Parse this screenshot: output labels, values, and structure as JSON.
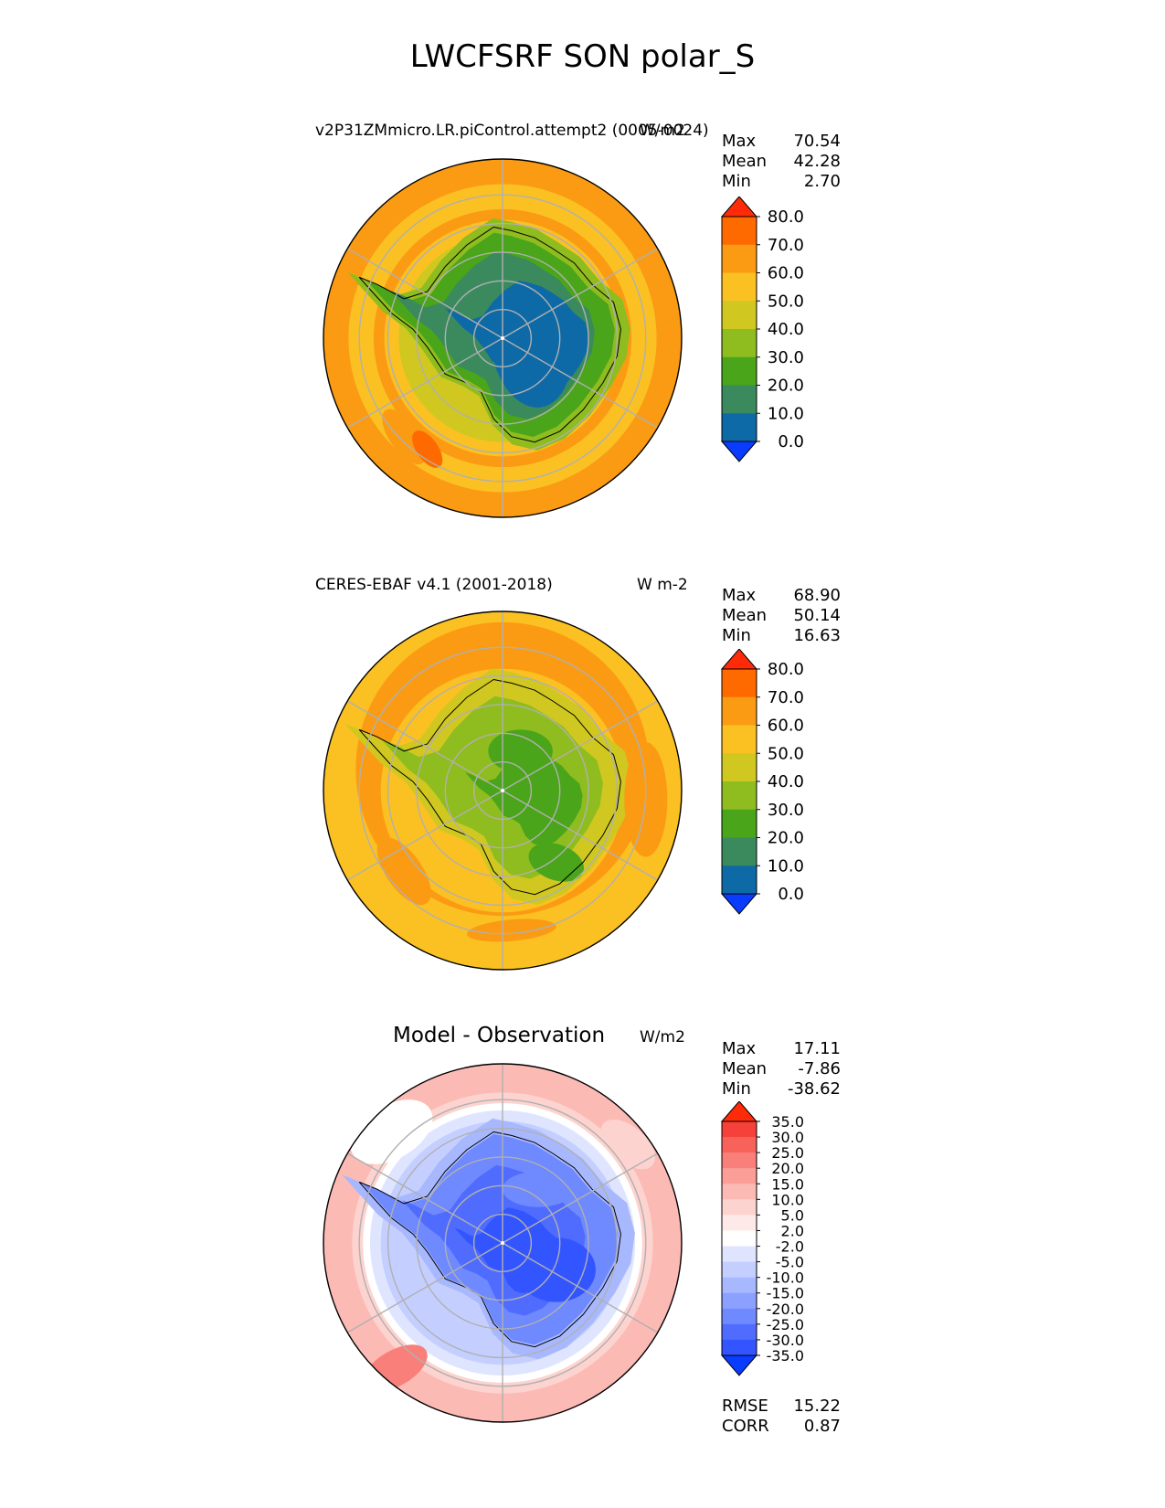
{
  "title": "LWCFSRF SON polar_S",
  "panels": [
    {
      "left_title": "v2P31ZMmicro.LR.piControl.attempt2 (0005-0024)",
      "right_title": "W/m2",
      "stats": [
        [
          "Max",
          "70.54"
        ],
        [
          "Mean",
          "42.28"
        ],
        [
          "Min",
          "2.70"
        ]
      ]
    },
    {
      "left_title": "CERES-EBAF v4.1 (2001-2018)",
      "right_title": "W m-2",
      "stats": [
        [
          "Max",
          "68.90"
        ],
        [
          "Mean",
          "50.14"
        ],
        [
          "Min",
          "16.63"
        ]
      ]
    },
    {
      "center_title": "Model - Observation",
      "right_title": "W/m2",
      "stats": [
        [
          "Max",
          "17.11"
        ],
        [
          "Mean",
          "-7.86"
        ],
        [
          "Min",
          "-38.62"
        ]
      ],
      "bottom_stats": [
        [
          "RMSE",
          "15.22"
        ],
        [
          "CORR",
          "0.87"
        ]
      ]
    }
  ],
  "colorbars": {
    "field": {
      "labels": [
        "80.0",
        "70.0",
        "60.0",
        "50.0",
        "40.0",
        "30.0",
        "20.0",
        "10.0",
        "0.0"
      ],
      "colors": [
        "#ff2a08",
        "#ff6a00",
        "#fb9b13",
        "#fbc123",
        "#d0c820",
        "#8fbc1e",
        "#4aa51a",
        "#3a8a5e",
        "#0e6aa6",
        "#0a3cff"
      ]
    },
    "diff": {
      "labels": [
        "35.0",
        "30.0",
        "25.0",
        "20.0",
        "15.0",
        "10.0",
        "5.0",
        "2.0",
        "-2.0",
        "-5.0",
        "-10.0",
        "-15.0",
        "-20.0",
        "-25.0",
        "-30.0",
        "-35.0"
      ],
      "colors": [
        "#ff2a08",
        "#f5413a",
        "#f7625a",
        "#f9807a",
        "#fb9e98",
        "#fcbab5",
        "#fdd3cf",
        "#fdeae8",
        "#ffffff",
        "#dfe5ff",
        "#c4cfff",
        "#a8b8ff",
        "#8ca1ff",
        "#6f89ff",
        "#4f6cff",
        "#3355ff",
        "#0a3cff"
      ]
    }
  },
  "chart_data": [
    {
      "type": "heatmap",
      "title": "v2P31ZMmicro.LR.piControl.attempt2 (0005-0024)",
      "units": "W/m2",
      "projection": "south polar stereographic",
      "stats": {
        "max": 70.54,
        "mean": 42.28,
        "min": 2.7
      },
      "levels": [
        0,
        10,
        20,
        30,
        40,
        50,
        60,
        70,
        80
      ],
      "description_values": {
        "pole_interior": 10,
        "coast_ring": 30,
        "midlat_ring": 55,
        "outer_ring": 65
      }
    },
    {
      "type": "heatmap",
      "title": "CERES-EBAF v4.1 (2001-2018)",
      "units": "W m-2",
      "projection": "south polar stereographic",
      "stats": {
        "max": 68.9,
        "mean": 50.14,
        "min": 16.63
      },
      "levels": [
        0,
        10,
        20,
        30,
        40,
        50,
        60,
        70,
        80
      ]
    },
    {
      "type": "heatmap",
      "title": "Model - Observation",
      "units": "W/m2",
      "projection": "south polar stereographic",
      "stats": {
        "max": 17.11,
        "mean": -7.86,
        "min": -38.62,
        "rmse": 15.22,
        "corr": 0.87
      },
      "levels": [
        -35,
        -30,
        -25,
        -20,
        -15,
        -10,
        -5,
        -2,
        2,
        5,
        10,
        15,
        20,
        25,
        30,
        35
      ]
    }
  ]
}
